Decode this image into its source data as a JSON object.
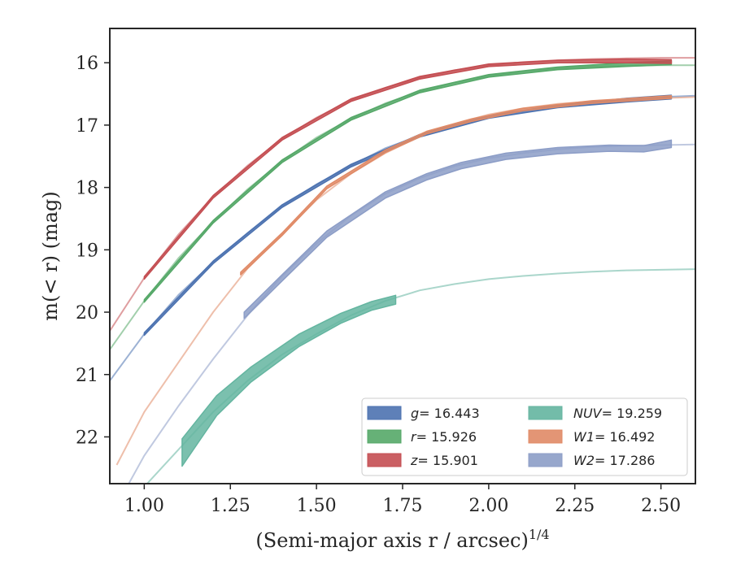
{
  "chart_data": {
    "type": "line",
    "xlabel": "(Semi-major axis r / arcsec)",
    "xlabel_exponent": "1/4",
    "ylabel": "m(< r) (mag)",
    "xlim": [
      0.9,
      2.6
    ],
    "ylim": [
      22.75,
      15.45
    ],
    "y_inverted": true,
    "xticks": [
      "1.00",
      "1.25",
      "1.50",
      "1.75",
      "2.00",
      "2.25",
      "2.50"
    ],
    "yticks": [
      "16",
      "17",
      "18",
      "19",
      "20",
      "21",
      "22"
    ],
    "grid": false,
    "legend_position": "lower-right",
    "legend": [
      {
        "band": "g",
        "text": "= 16.443"
      },
      {
        "band": "r",
        "text": "= 15.926"
      },
      {
        "band": "z",
        "text": "= 15.901"
      },
      {
        "band": "NUV",
        "text": "= 19.259"
      },
      {
        "band": "W1",
        "text": "= 16.492"
      },
      {
        "band": "W2",
        "text": "= 17.286"
      }
    ],
    "series": [
      {
        "name": "g",
        "color": "#4c72b0",
        "model": {
          "x": [
            0.9,
            1.0,
            1.1,
            1.2,
            1.3,
            1.4,
            1.5,
            1.6,
            1.7,
            1.8,
            1.9,
            2.0,
            2.1,
            2.2,
            2.3,
            2.4,
            2.5,
            2.6
          ],
          "y": [
            21.1,
            20.35,
            19.72,
            19.2,
            18.73,
            18.3,
            17.95,
            17.65,
            17.37,
            17.17,
            17.0,
            16.87,
            16.77,
            16.69,
            16.63,
            16.58,
            16.55,
            16.53
          ]
        },
        "data": {
          "x": [
            1.0,
            1.2,
            1.4,
            1.6,
            1.8,
            2.0,
            2.2,
            2.4,
            2.53
          ],
          "y": [
            20.35,
            19.2,
            18.3,
            17.65,
            17.17,
            16.87,
            16.7,
            16.6,
            16.55
          ],
          "err": [
            0.02,
            0.02,
            0.02,
            0.02,
            0.02,
            0.02,
            0.02,
            0.03,
            0.03
          ]
        }
      },
      {
        "name": "r",
        "color": "#55a868",
        "model": {
          "x": [
            0.9,
            1.0,
            1.1,
            1.2,
            1.3,
            1.4,
            1.5,
            1.6,
            1.7,
            1.8,
            1.9,
            2.0,
            2.1,
            2.2,
            2.3,
            2.4,
            2.5,
            2.6
          ],
          "y": [
            20.6,
            19.82,
            19.13,
            18.55,
            18.03,
            17.58,
            17.2,
            16.9,
            16.65,
            16.46,
            16.32,
            16.21,
            16.14,
            16.09,
            16.06,
            16.05,
            16.04,
            16.04
          ]
        },
        "data": {
          "x": [
            1.0,
            1.2,
            1.4,
            1.6,
            1.8,
            2.0,
            2.2,
            2.4,
            2.53
          ],
          "y": [
            19.82,
            18.55,
            17.58,
            16.9,
            16.46,
            16.21,
            16.09,
            16.03,
            16.0
          ],
          "err": [
            0.02,
            0.02,
            0.02,
            0.02,
            0.02,
            0.02,
            0.02,
            0.03,
            0.03
          ]
        }
      },
      {
        "name": "z",
        "color": "#c44e52",
        "model": {
          "x": [
            0.9,
            1.0,
            1.1,
            1.2,
            1.3,
            1.4,
            1.5,
            1.6,
            1.7,
            1.8,
            1.9,
            2.0,
            2.1,
            2.2,
            2.3,
            2.4,
            2.5,
            2.6
          ],
          "y": [
            20.3,
            19.45,
            18.75,
            18.15,
            17.65,
            17.22,
            16.88,
            16.6,
            16.4,
            16.24,
            16.12,
            16.04,
            15.99,
            15.96,
            15.94,
            15.93,
            15.92,
            15.92
          ]
        },
        "data": {
          "x": [
            1.0,
            1.2,
            1.4,
            1.6,
            1.8,
            2.0,
            2.2,
            2.4,
            2.53
          ],
          "y": [
            19.45,
            18.15,
            17.22,
            16.6,
            16.24,
            16.04,
            15.98,
            15.97,
            15.98
          ],
          "err": [
            0.02,
            0.02,
            0.02,
            0.02,
            0.02,
            0.02,
            0.02,
            0.03,
            0.03
          ]
        }
      },
      {
        "name": "NUV",
        "color": "#64b5a0",
        "model": {
          "x": [
            0.92,
            1.0,
            1.1,
            1.2,
            1.3,
            1.4,
            1.5,
            1.6,
            1.7,
            1.8,
            1.9,
            2.0,
            2.1,
            2.2,
            2.3,
            2.4,
            2.5,
            2.6
          ],
          "y": [
            23.3,
            22.8,
            22.2,
            21.6,
            21.1,
            20.68,
            20.35,
            20.05,
            19.82,
            19.65,
            19.55,
            19.47,
            19.42,
            19.38,
            19.35,
            19.33,
            19.32,
            19.31
          ]
        },
        "data": {
          "x": [
            1.11,
            1.21,
            1.31,
            1.45,
            1.57,
            1.66,
            1.73
          ],
          "y": [
            22.25,
            21.5,
            21.0,
            20.45,
            20.1,
            19.9,
            19.8
          ],
          "err": [
            0.22,
            0.16,
            0.12,
            0.1,
            0.08,
            0.07,
            0.07
          ]
        }
      },
      {
        "name": "W1",
        "color": "#e08a66",
        "model": {
          "x": [
            0.92,
            1.0,
            1.1,
            1.2,
            1.3,
            1.4,
            1.5,
            1.6,
            1.7,
            1.8,
            1.9,
            2.0,
            2.1,
            2.2,
            2.3,
            2.4,
            2.5,
            2.6
          ],
          "y": [
            22.45,
            21.6,
            20.8,
            20.0,
            19.3,
            18.75,
            18.2,
            17.78,
            17.45,
            17.18,
            16.98,
            16.83,
            16.73,
            16.66,
            16.62,
            16.59,
            16.57,
            16.55
          ]
        },
        "data": {
          "x": [
            1.28,
            1.4,
            1.53,
            1.7,
            1.82,
            1.95,
            2.1,
            2.3,
            2.53
          ],
          "y": [
            19.38,
            18.75,
            18.0,
            17.42,
            17.12,
            16.92,
            16.75,
            16.63,
            16.55
          ],
          "err": [
            0.02,
            0.02,
            0.02,
            0.02,
            0.02,
            0.02,
            0.02,
            0.02,
            0.02
          ]
        }
      },
      {
        "name": "W2",
        "color": "#8c9dc7",
        "model": {
          "x": [
            0.95,
            1.0,
            1.1,
            1.2,
            1.3,
            1.4,
            1.5,
            1.6,
            1.7,
            1.8,
            1.9,
            2.0,
            2.1,
            2.2,
            2.3,
            2.4,
            2.5,
            2.6
          ],
          "y": [
            22.8,
            22.3,
            21.5,
            20.75,
            20.05,
            19.42,
            18.9,
            18.45,
            18.1,
            17.85,
            17.66,
            17.53,
            17.45,
            17.39,
            17.35,
            17.33,
            17.32,
            17.31
          ]
        },
        "data": {
          "x": [
            1.29,
            1.4,
            1.53,
            1.7,
            1.82,
            1.92,
            2.05,
            2.2,
            2.35,
            2.45,
            2.53
          ],
          "y": [
            20.05,
            19.45,
            18.75,
            18.12,
            17.83,
            17.65,
            17.5,
            17.41,
            17.37,
            17.38,
            17.3
          ],
          "err": [
            0.05,
            0.05,
            0.05,
            0.05,
            0.05,
            0.05,
            0.05,
            0.05,
            0.05,
            0.05,
            0.06
          ]
        }
      }
    ]
  }
}
